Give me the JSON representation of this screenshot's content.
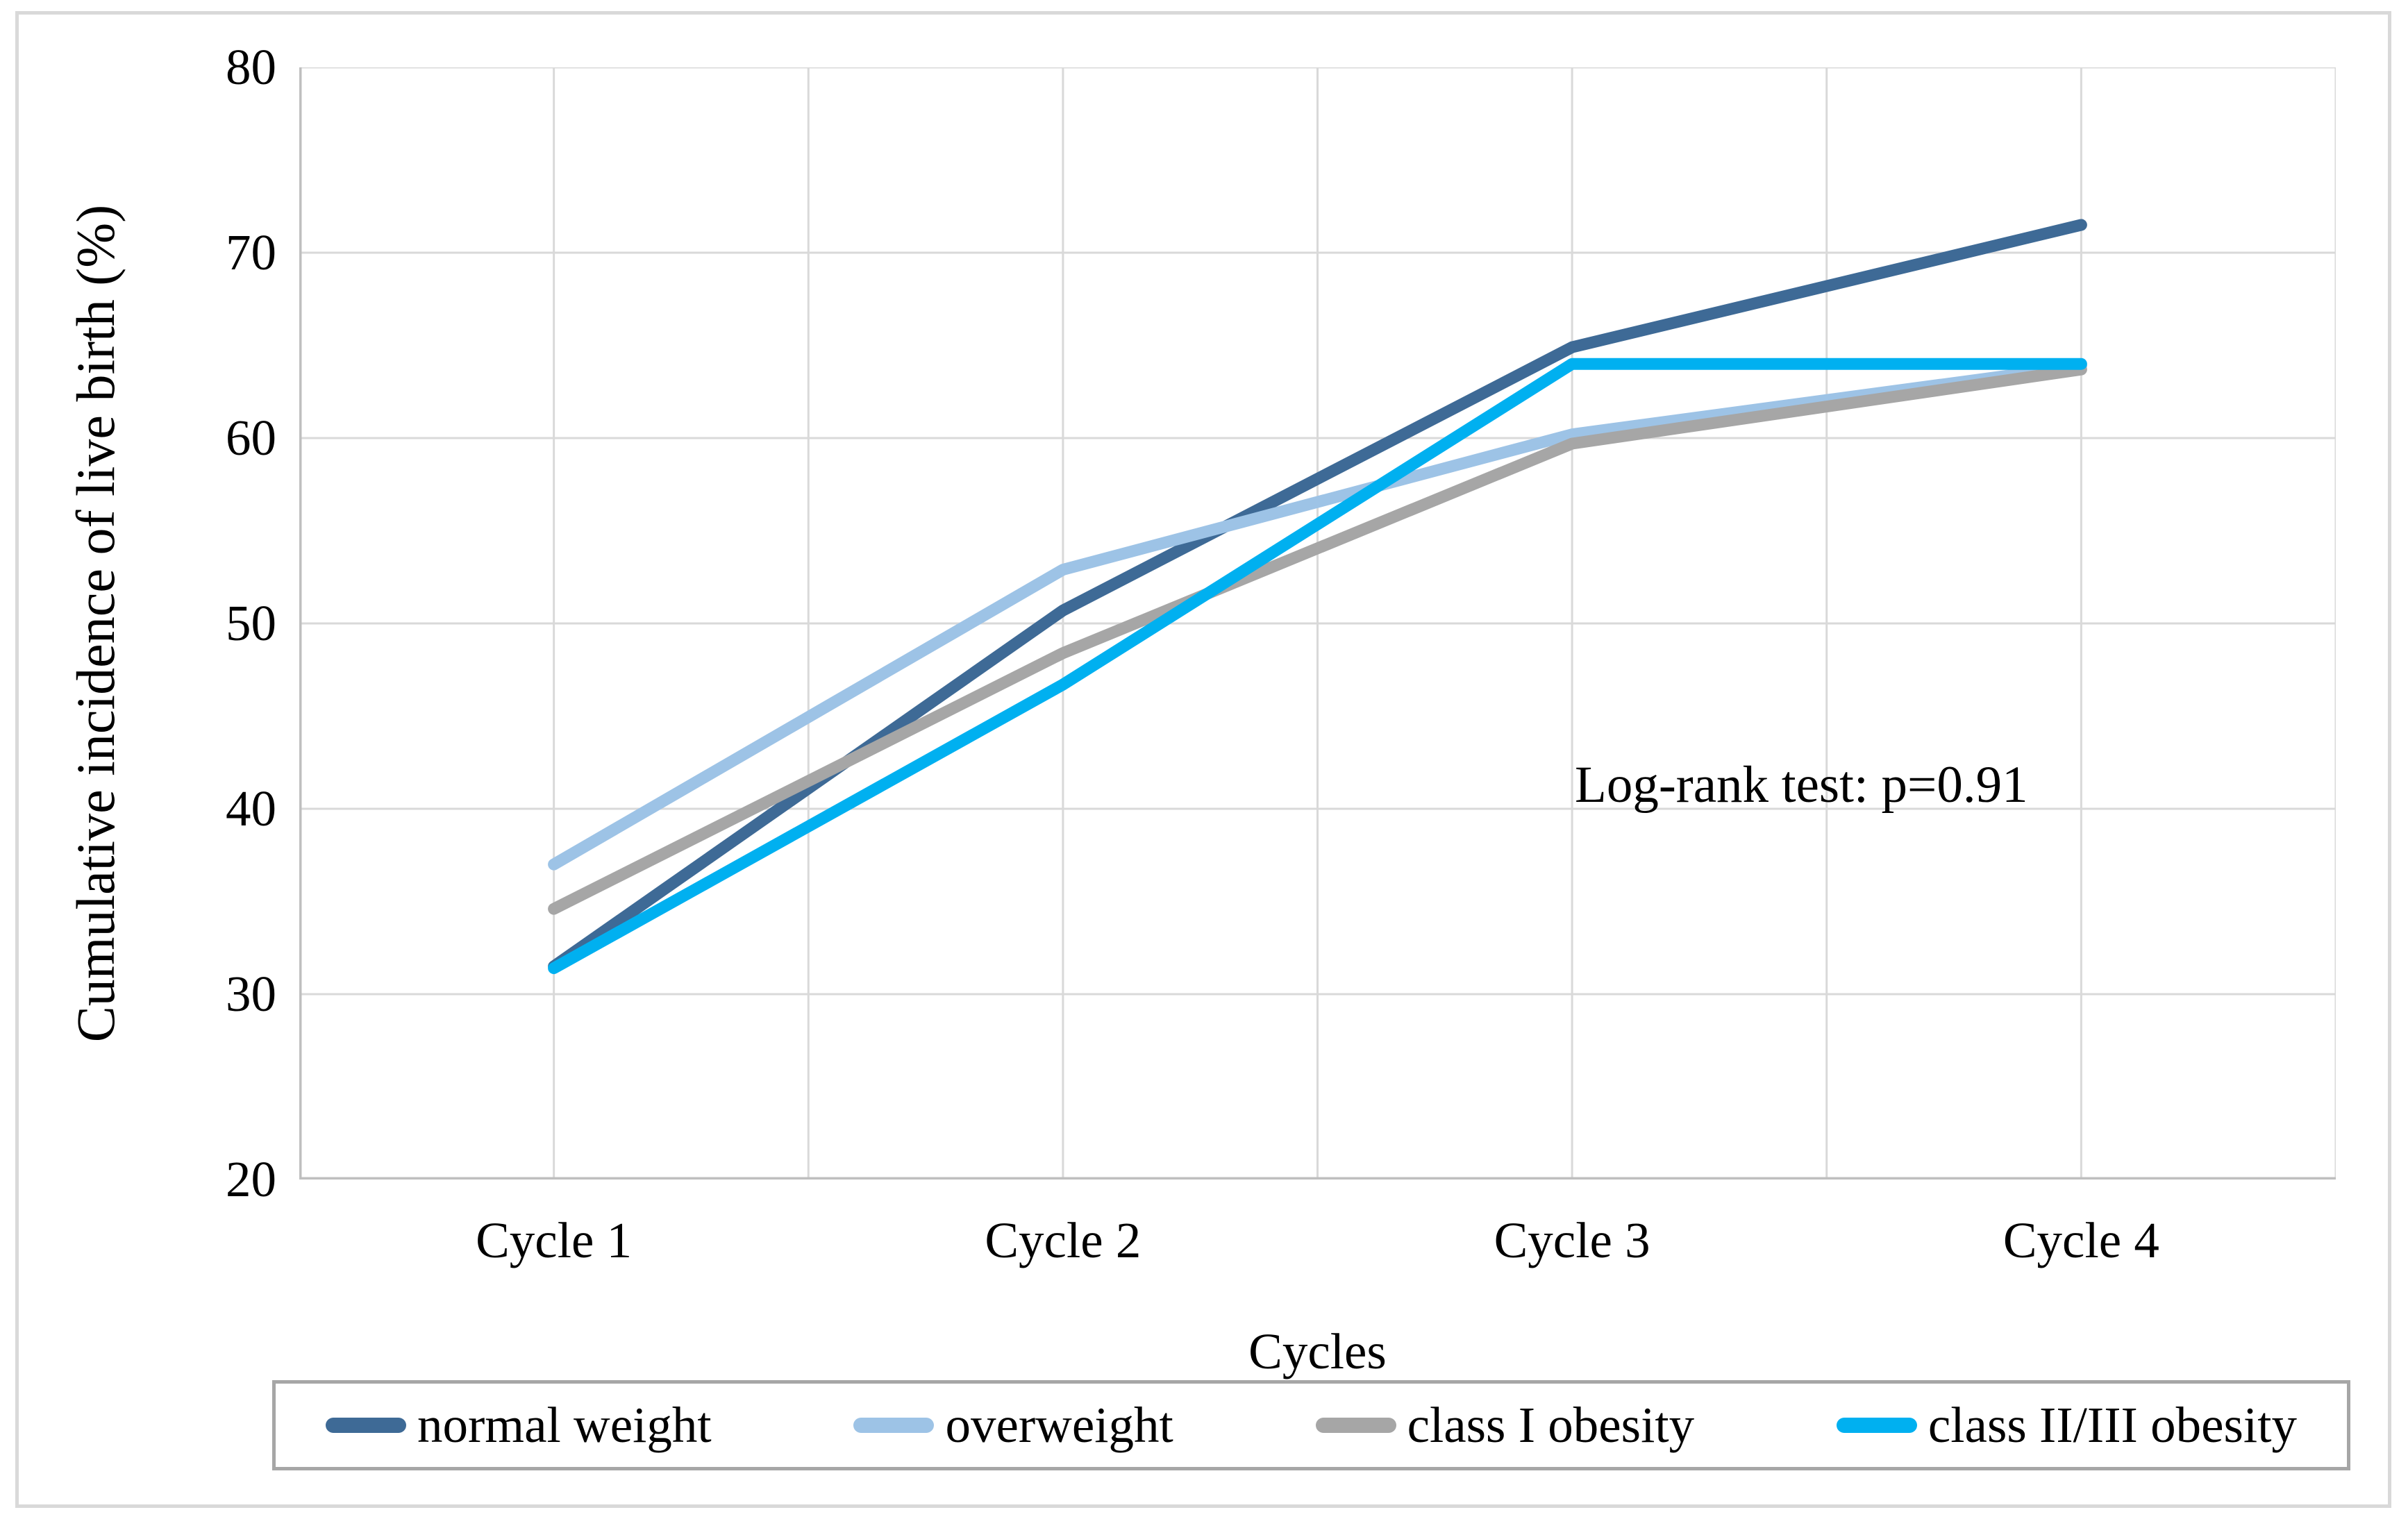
{
  "chart_data": {
    "type": "line",
    "categories": [
      "Cycle 1",
      "Cycle 2",
      "Cycle 3",
      "Cycle 4"
    ],
    "series": [
      {
        "name": "normal weight",
        "color": "#3E6A96",
        "values": [
          31.5,
          50.7,
          64.9,
          71.5
        ]
      },
      {
        "name": "overweight",
        "color": "#9DC3E6",
        "values": [
          37.0,
          52.9,
          60.2,
          63.9
        ]
      },
      {
        "name": "class I obesity",
        "color": "#A6A6A6",
        "values": [
          34.6,
          48.4,
          59.7,
          63.7
        ]
      },
      {
        "name": "class II/III obesity",
        "color": "#00B0F0",
        "values": [
          31.4,
          46.7,
          64.0,
          64.0
        ]
      }
    ],
    "title": "",
    "xlabel": "Cycles",
    "ylabel": "Cumulative incidence of live birth (%)",
    "ylim": [
      20,
      80
    ],
    "yticks": [
      80,
      70,
      60,
      50,
      40,
      30,
      20
    ],
    "grid": true,
    "legend_position": "bottom",
    "annotation": "Log-rank test: p=0.91"
  },
  "colors": {
    "gridline": "#D9D9D9",
    "axis_line": "#BFBFBF",
    "outer_border": "#D9D9D9",
    "legend_border": "#A6A6A6",
    "text": "#000000",
    "background": "#FFFFFF"
  }
}
